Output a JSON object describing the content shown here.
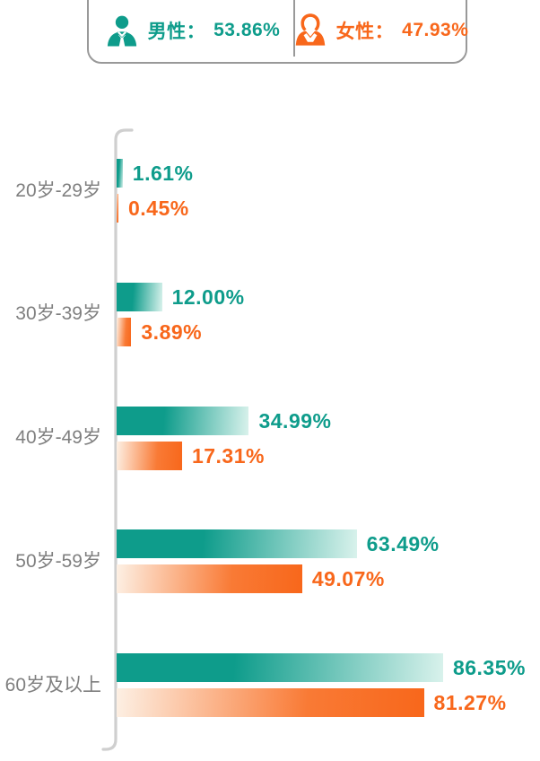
{
  "legend": {
    "male": {
      "icon": "male-person-icon",
      "label": "男性：",
      "value": "53.86%"
    },
    "female": {
      "icon": "female-person-icon",
      "label": "女性：",
      "value": "47.93%"
    }
  },
  "chart_data": {
    "type": "bar",
    "orientation": "horizontal",
    "title": "",
    "xlabel": "",
    "ylabel": "",
    "categories": [
      "20岁-29岁",
      "30岁-39岁",
      "40岁-49岁",
      "50岁-59岁",
      "60岁及以上"
    ],
    "series": [
      {
        "name": "男性",
        "color": "#0E9C8B",
        "values": [
          1.61,
          12.0,
          34.99,
          63.49,
          86.35
        ],
        "labels": [
          "1.61%",
          "12.00%",
          "34.99%",
          "63.49%",
          "86.35%"
        ]
      },
      {
        "name": "女性",
        "color": "#F8671B",
        "values": [
          0.45,
          3.89,
          17.31,
          49.07,
          81.27
        ],
        "labels": [
          "0.45%",
          "3.89%",
          "17.31%",
          "49.07%",
          "81.27%"
        ]
      }
    ],
    "xlim": [
      0,
      100
    ],
    "grid": false,
    "legend_position": "top",
    "value_label_position": "right-of-bar"
  },
  "colors": {
    "male_accent": "#0E9C8B",
    "male_light": "#D9F2EC",
    "female_accent": "#F8671B",
    "female_light": "#FDF0E4",
    "category_text": "#7F7F7F",
    "axis": "#CFCFCF",
    "legend_border": "#999999"
  }
}
